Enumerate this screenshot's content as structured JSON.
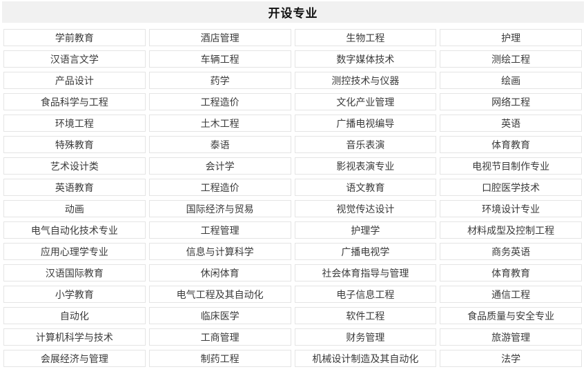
{
  "page": {
    "title": "开设专业"
  },
  "colors": {
    "page_bg": "#ffffff",
    "title_bar_bg": "#f1f1f1",
    "title_text": "#111111",
    "cell_border": "#e4e4e4",
    "cell_text": "#3a3a3a"
  },
  "majors_table": {
    "columns": 4,
    "rows": [
      [
        "学前教育",
        "酒店管理",
        "生物工程",
        "护理"
      ],
      [
        "汉语言文学",
        "车辆工程",
        "数字媒体技术",
        "测绘工程"
      ],
      [
        "产品设计",
        "药学",
        "测控技术与仪器",
        "绘画"
      ],
      [
        "食品科学与工程",
        "工程造价",
        "文化产业管理",
        "网络工程"
      ],
      [
        "环境工程",
        "土木工程",
        "广播电视编导",
        "英语"
      ],
      [
        "特殊教育",
        "泰语",
        "音乐表演",
        "体育教育"
      ],
      [
        "艺术设计类",
        "会计学",
        "影视表演专业",
        "电视节目制作专业"
      ],
      [
        "英语教育",
        "工程造价",
        "语文教育",
        "口腔医学技术"
      ],
      [
        "动画",
        "国际经济与贸易",
        "视觉传达设计",
        "环境设计专业"
      ],
      [
        "电气自动化技术专业",
        "工程管理",
        "护理学",
        "材料成型及控制工程"
      ],
      [
        "应用心理学专业",
        "信息与计算科学",
        "广播电视学",
        "商务英语"
      ],
      [
        "汉语国际教育",
        "休闲体育",
        "社会体育指导与管理",
        "体育教育"
      ],
      [
        "小学教育",
        "电气工程及其自动化",
        "电子信息工程",
        "通信工程"
      ],
      [
        "自动化",
        "临床医学",
        "软件工程",
        "食品质量与安全专业"
      ],
      [
        "计算机科学与技术",
        "工商管理",
        "财务管理",
        "旅游管理"
      ],
      [
        "会展经济与管理",
        "制药工程",
        "机械设计制造及其自动化",
        "法学"
      ]
    ]
  }
}
